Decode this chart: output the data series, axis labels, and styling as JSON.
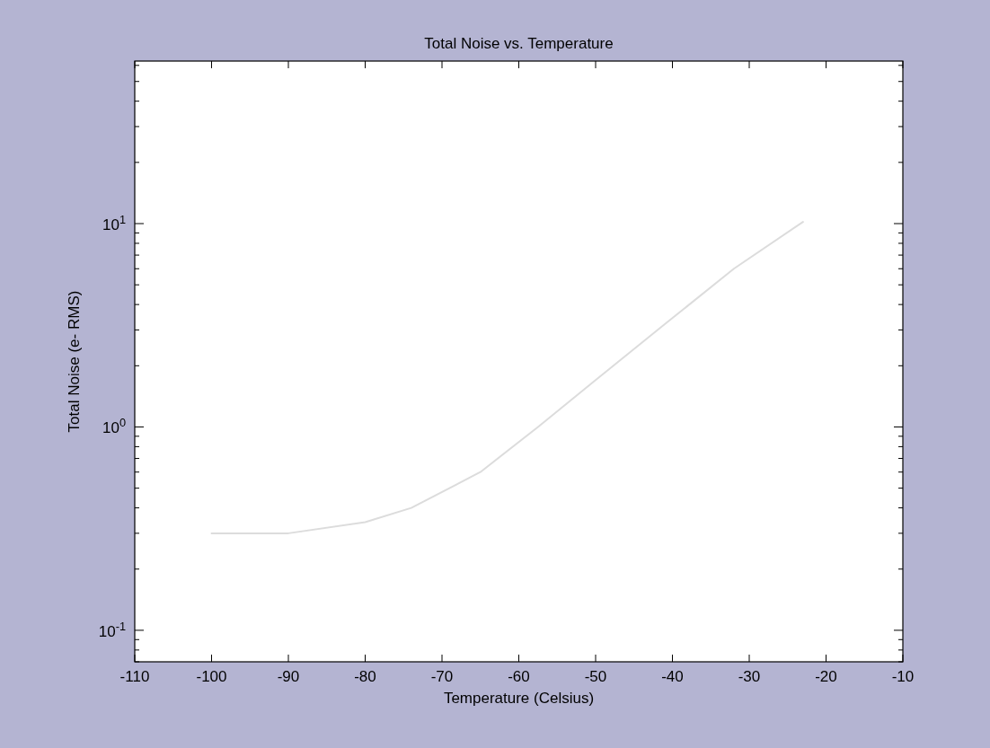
{
  "chart_data": {
    "type": "line",
    "title": "Total Noise vs. Temperature",
    "xlabel": "Temperature (Celsius)",
    "ylabel": "Total Noise (e- RMS)",
    "x": [
      -100,
      -90,
      -80,
      -74,
      -65,
      -57.5,
      -50,
      -41,
      -32,
      -23
    ],
    "series": [
      {
        "color": "#dcdcdc",
        "values": [
          0.3,
          0.3,
          0.34,
          0.4,
          0.6,
          1.0,
          1.7,
          3.2,
          6,
          10.2
        ]
      }
    ],
    "xlim": [
      -110,
      -10
    ],
    "xticks": [
      -110,
      -100,
      -90,
      -80,
      -70,
      -60,
      -50,
      -40,
      -30,
      -20,
      -10
    ],
    "log": true,
    "ylim": [
      0.07,
      63
    ],
    "yticks": [
      {
        "value": 0.07,
        "label": null
      },
      {
        "value": 0.08,
        "label": null
      },
      {
        "value": 0.09,
        "label": null
      },
      {
        "value": 0.1,
        "label": "10$^{-1}$"
      },
      {
        "value": 0.2,
        "label": null
      },
      {
        "value": 0.3,
        "label": null
      },
      {
        "value": 0.4,
        "label": null
      },
      {
        "value": 0.5,
        "label": null
      },
      {
        "value": 0.6,
        "label": null
      },
      {
        "value": 0.7,
        "label": null
      },
      {
        "value": 0.8,
        "label": null
      },
      {
        "value": 0.9,
        "label": null
      },
      {
        "value": 1,
        "label": "10$^{0}$"
      },
      {
        "value": 2,
        "label": null
      },
      {
        "value": 3,
        "label": null
      },
      {
        "value": 4,
        "label": null
      },
      {
        "value": 5,
        "label": null
      },
      {
        "value": 6,
        "label": null
      },
      {
        "value": 7,
        "label": null
      },
      {
        "value": 8,
        "label": null
      },
      {
        "value": 9,
        "label": null
      },
      {
        "value": 10,
        "label": "10$^{1}$"
      },
      {
        "value": 20,
        "label": null
      },
      {
        "value": 30,
        "label": null
      },
      {
        "value": 40,
        "label": null
      },
      {
        "value": 50,
        "label": null
      },
      {
        "value": 60,
        "label": null
      }
    ],
    "marker": "none",
    "line_style": "solid"
  }
}
